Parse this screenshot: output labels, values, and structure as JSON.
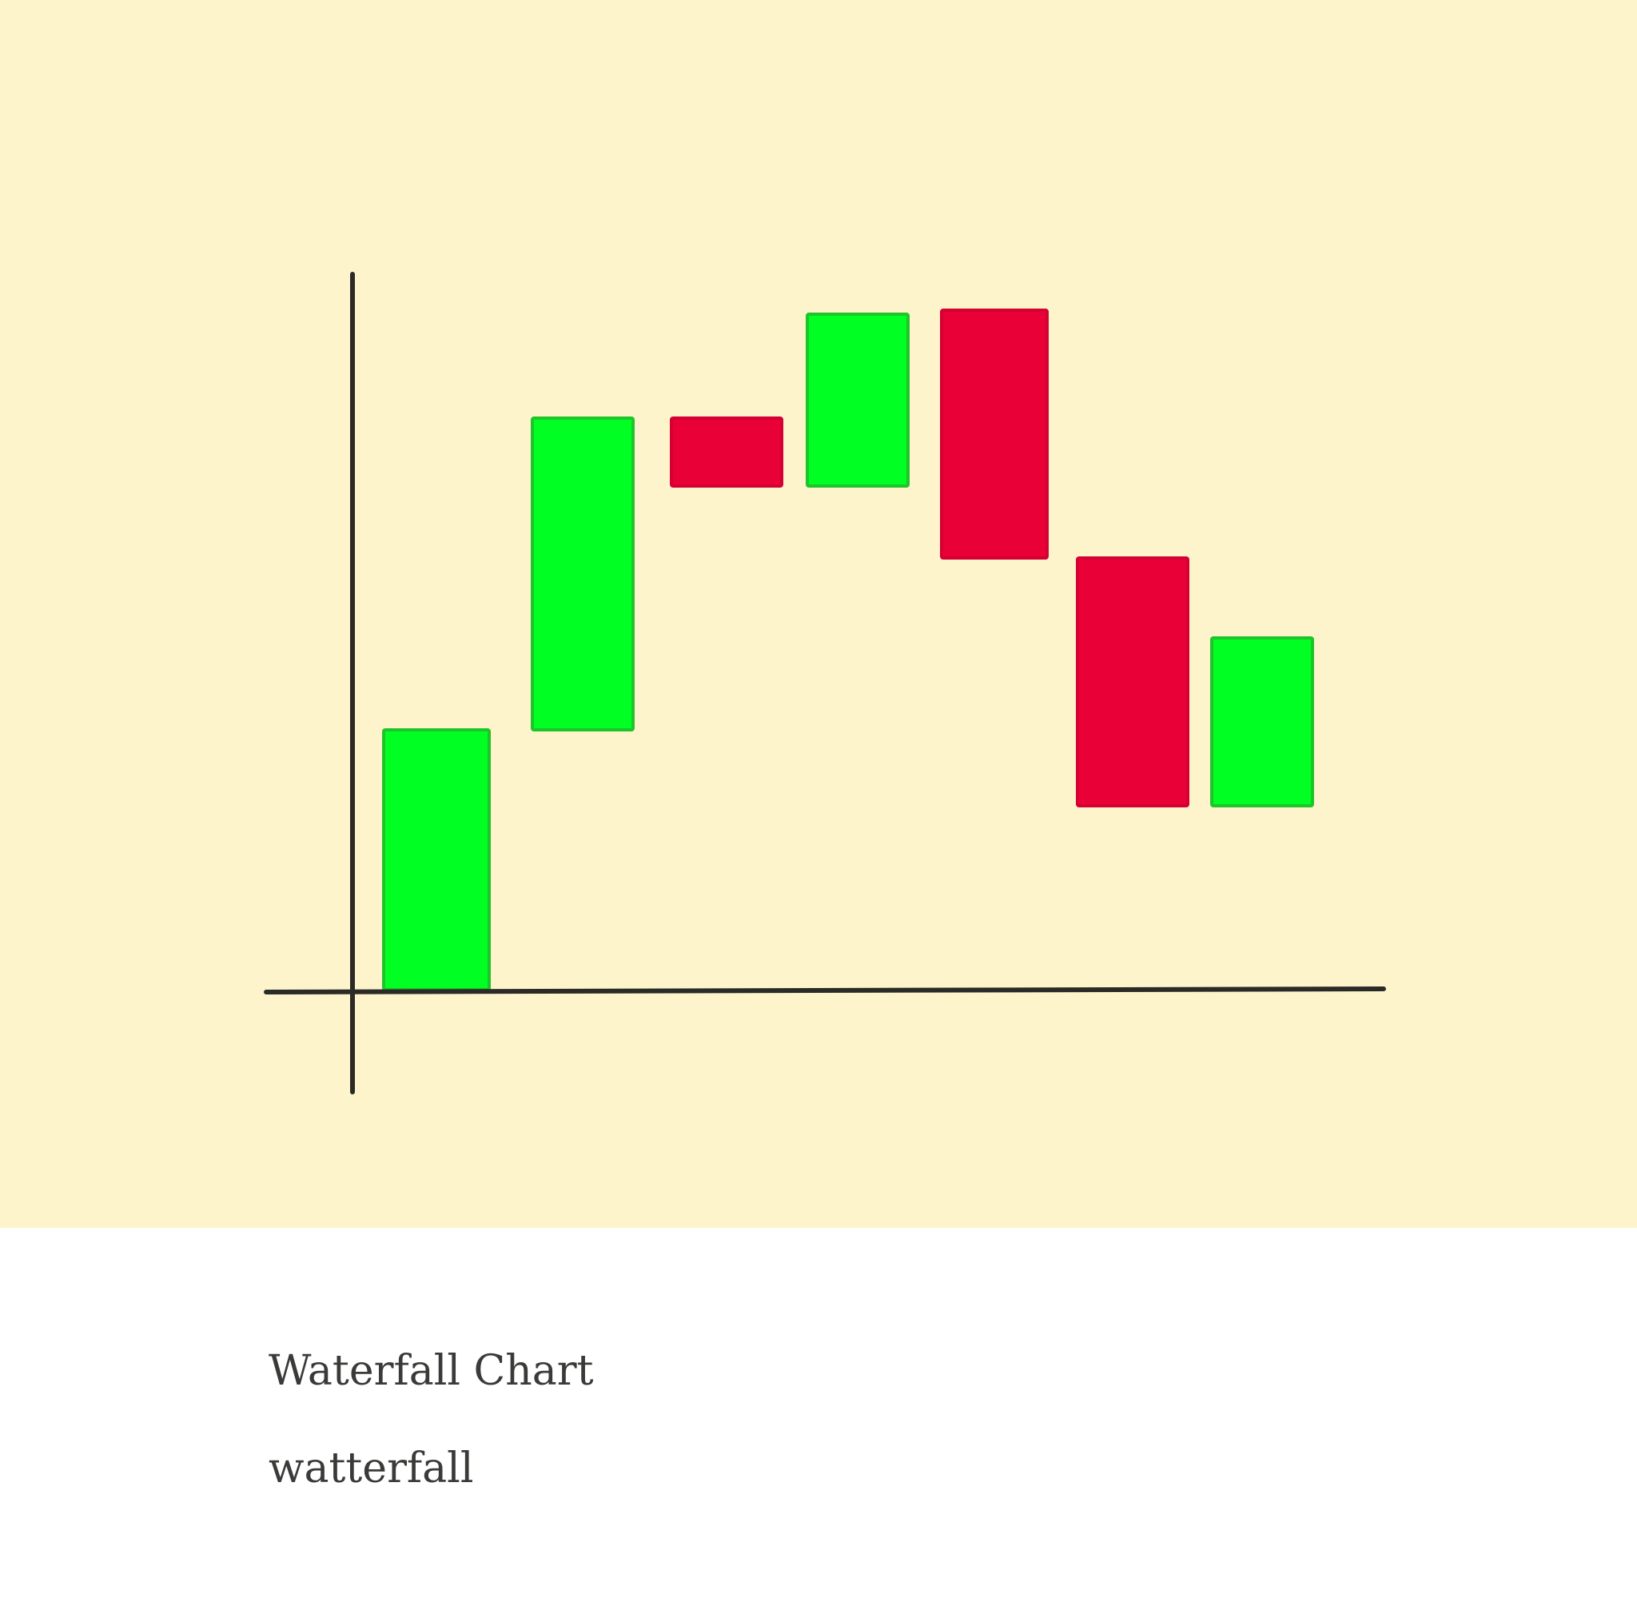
{
  "chart_data": {
    "type": "bar",
    "variant": "waterfall",
    "title": "",
    "xlabel": "",
    "ylabel": "",
    "categories": [],
    "steps": [
      {
        "start": 0,
        "end": 32.5,
        "direction": "increase"
      },
      {
        "start": 32.5,
        "end": 71.5,
        "direction": "increase"
      },
      {
        "start": 71.5,
        "end": 63,
        "direction": "decrease"
      },
      {
        "start": 63,
        "end": 84.5,
        "direction": "increase"
      },
      {
        "start": 85,
        "end": 54,
        "direction": "decrease"
      },
      {
        "start": 54,
        "end": 23,
        "direction": "decrease"
      },
      {
        "start": 23,
        "end": 44,
        "direction": "increase"
      }
    ],
    "ylim": [
      0,
      100
    ],
    "grid": false,
    "legend": "none",
    "colors": {
      "increase_fill": "#00ff22",
      "increase_stroke": "#1fc42a",
      "decrease_fill": "#e90037",
      "decrease_stroke": "#d40032",
      "axis": "#2a2a26",
      "background": "#fdf4cc"
    }
  },
  "card": {
    "title": "Waterfall Chart",
    "tag": "watterfall"
  }
}
